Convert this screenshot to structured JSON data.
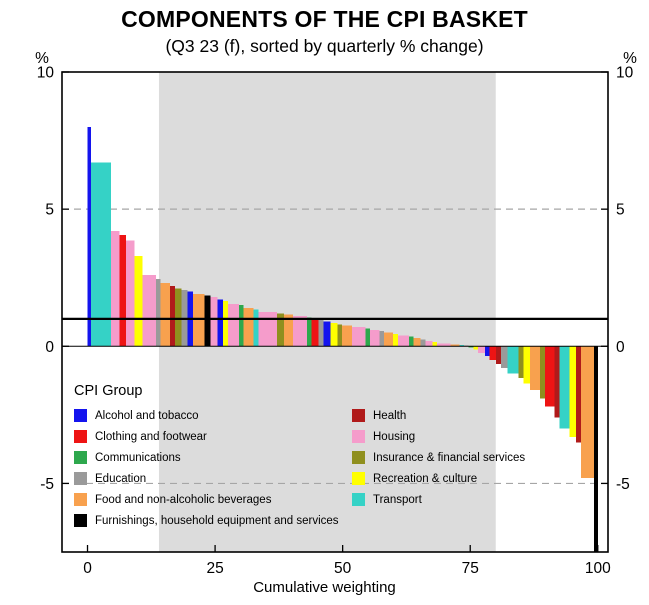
{
  "title": "COMPONENTS OF THE CPI BASKET",
  "subtitle": "(Q3 23 (f), sorted by quarterly % change)",
  "axes": {
    "x_label": "Cumulative weighting",
    "y_unit": "%",
    "x_ticks": [
      0,
      25,
      50,
      75,
      100
    ],
    "y_ticks": [
      10,
      5,
      0,
      -5
    ]
  },
  "colors": {
    "band": "#DCDCDC",
    "frame": "#000000",
    "gridline": "#A6A6A6",
    "zero_line": "#000000",
    "reference_line": "#000000"
  },
  "legend": {
    "title": "CPI Group",
    "columns": [
      [
        "AT",
        "CF",
        "CO",
        "ED",
        "FB",
        "FU"
      ],
      [
        "HE",
        "HO",
        "IF",
        "RC",
        "TR"
      ]
    ]
  },
  "groups": {
    "AT": {
      "label": "Alcohol and tobacco",
      "color": "#1414EE"
    },
    "CF": {
      "label": "Clothing and footwear",
      "color": "#EE1414"
    },
    "CO": {
      "label": "Communications",
      "color": "#2EA84D"
    },
    "ED": {
      "label": "Education",
      "color": "#9A9A9A"
    },
    "FB": {
      "label": "Food and non-alcoholic beverages",
      "color": "#F8A14E"
    },
    "FU": {
      "label": "Furnishings, household equipment and services",
      "color": "#000000"
    },
    "HE": {
      "label": "Health",
      "color": "#B01A1A"
    },
    "HO": {
      "label": "Housing",
      "color": "#F59CCB"
    },
    "IF": {
      "label": "Insurance & financial services",
      "color": "#8F8F1E"
    },
    "RC": {
      "label": "Recreation & culture",
      "color": "#FFFF00"
    },
    "TR": {
      "label": "Transport",
      "color": "#35D2C6"
    }
  },
  "chart_data": {
    "type": "bar",
    "variant": "variable-width sorted descending by quarterly % change",
    "title": "COMPONENTS OF THE CPI BASKET",
    "subtitle": "(Q3 23 (f), sorted by quarterly % change)",
    "xlabel": "Cumulative weighting",
    "ylabel": "%",
    "xlim": [
      -5,
      102
    ],
    "ylim": [
      -7.5,
      10
    ],
    "x_ticks": [
      0,
      25,
      50,
      75,
      100
    ],
    "y_ticks": [
      10,
      5,
      0,
      -5
    ],
    "reference_line_y": 1,
    "zero_line_y": 0,
    "dashed_gridlines_y": [
      5,
      -5
    ],
    "shaded_band_x": [
      14,
      80
    ],
    "legend_position": "lower-left inside plot",
    "bars": [
      {
        "w": 0.7,
        "v": 8.0,
        "g": "AT"
      },
      {
        "w": 3.9,
        "v": 6.7,
        "g": "TR"
      },
      {
        "w": 1.7,
        "v": 4.2,
        "g": "HO"
      },
      {
        "w": 1.2,
        "v": 4.05,
        "g": "CF"
      },
      {
        "w": 1.7,
        "v": 3.85,
        "g": "HO"
      },
      {
        "w": 1.6,
        "v": 3.3,
        "g": "RC"
      },
      {
        "w": 2.6,
        "v": 2.6,
        "g": "HO"
      },
      {
        "w": 0.9,
        "v": 2.45,
        "g": "ED"
      },
      {
        "w": 1.9,
        "v": 2.3,
        "g": "FB"
      },
      {
        "w": 0.9,
        "v": 2.2,
        "g": "HE"
      },
      {
        "w": 1.3,
        "v": 2.1,
        "g": "IF"
      },
      {
        "w": 1.2,
        "v": 2.05,
        "g": "ED"
      },
      {
        "w": 1.1,
        "v": 2.0,
        "g": "AT"
      },
      {
        "w": 2.2,
        "v": 1.9,
        "g": "FB"
      },
      {
        "w": 1.2,
        "v": 1.85,
        "g": "FU"
      },
      {
        "w": 1.4,
        "v": 1.8,
        "g": "HO"
      },
      {
        "w": 1.1,
        "v": 1.7,
        "g": "AT"
      },
      {
        "w": 0.9,
        "v": 1.65,
        "g": "RC"
      },
      {
        "w": 2.2,
        "v": 1.55,
        "g": "HO"
      },
      {
        "w": 0.9,
        "v": 1.5,
        "g": "CO"
      },
      {
        "w": 1.9,
        "v": 1.4,
        "g": "FB"
      },
      {
        "w": 1.0,
        "v": 1.35,
        "g": "TR"
      },
      {
        "w": 3.6,
        "v": 1.25,
        "g": "HO"
      },
      {
        "w": 1.4,
        "v": 1.2,
        "g": "IF"
      },
      {
        "w": 1.8,
        "v": 1.15,
        "g": "FB"
      },
      {
        "w": 2.7,
        "v": 1.1,
        "g": "HO"
      },
      {
        "w": 0.9,
        "v": 1.05,
        "g": "CO"
      },
      {
        "w": 1.4,
        "v": 1.0,
        "g": "CF"
      },
      {
        "w": 0.9,
        "v": 0.95,
        "g": "ED"
      },
      {
        "w": 1.4,
        "v": 0.9,
        "g": "AT"
      },
      {
        "w": 1.4,
        "v": 0.85,
        "g": "RC"
      },
      {
        "w": 0.9,
        "v": 0.8,
        "g": "IF"
      },
      {
        "w": 1.9,
        "v": 0.75,
        "g": "FB"
      },
      {
        "w": 2.7,
        "v": 0.7,
        "g": "HO"
      },
      {
        "w": 0.9,
        "v": 0.65,
        "g": "CO"
      },
      {
        "w": 1.8,
        "v": 0.6,
        "g": "HO"
      },
      {
        "w": 0.9,
        "v": 0.55,
        "g": "ED"
      },
      {
        "w": 1.8,
        "v": 0.5,
        "g": "FB"
      },
      {
        "w": 0.9,
        "v": 0.45,
        "g": "RC"
      },
      {
        "w": 2.2,
        "v": 0.4,
        "g": "HO"
      },
      {
        "w": 0.9,
        "v": 0.35,
        "g": "CO"
      },
      {
        "w": 1.4,
        "v": 0.3,
        "g": "FB"
      },
      {
        "w": 0.9,
        "v": 0.25,
        "g": "ED"
      },
      {
        "w": 1.4,
        "v": 0.2,
        "g": "HO"
      },
      {
        "w": 0.9,
        "v": 0.15,
        "g": "RC"
      },
      {
        "w": 2.6,
        "v": 0.1,
        "g": "HO"
      },
      {
        "w": 1.8,
        "v": 0.07,
        "g": "FB"
      },
      {
        "w": 0.9,
        "v": 0.05,
        "g": "TR"
      },
      {
        "w": 0.9,
        "v": 0.03,
        "g": "ED"
      },
      {
        "w": 0.9,
        "v": -0.05,
        "g": "CO"
      },
      {
        "w": 0.9,
        "v": -0.12,
        "g": "RC"
      },
      {
        "w": 1.4,
        "v": -0.25,
        "g": "HO"
      },
      {
        "w": 0.9,
        "v": -0.35,
        "g": "AT"
      },
      {
        "w": 1.3,
        "v": -0.5,
        "g": "CF"
      },
      {
        "w": 0.9,
        "v": -0.65,
        "g": "HE"
      },
      {
        "w": 1.3,
        "v": -0.8,
        "g": "ED"
      },
      {
        "w": 2.2,
        "v": -1.0,
        "g": "TR"
      },
      {
        "w": 0.9,
        "v": -1.15,
        "g": "IF"
      },
      {
        "w": 1.3,
        "v": -1.35,
        "g": "RC"
      },
      {
        "w": 2.0,
        "v": -1.6,
        "g": "FB"
      },
      {
        "w": 1.0,
        "v": -1.9,
        "g": "IF"
      },
      {
        "w": 1.8,
        "v": -2.2,
        "g": "CF"
      },
      {
        "w": 1.0,
        "v": -2.6,
        "g": "HE"
      },
      {
        "w": 2.0,
        "v": -3.0,
        "g": "TR"
      },
      {
        "w": 1.2,
        "v": -3.3,
        "g": "RC"
      },
      {
        "w": 1.0,
        "v": -3.5,
        "g": "HE"
      },
      {
        "w": 2.6,
        "v": -4.8,
        "g": "FB"
      },
      {
        "w": 0.7,
        "v": -7.5,
        "g": "FU"
      }
    ]
  }
}
